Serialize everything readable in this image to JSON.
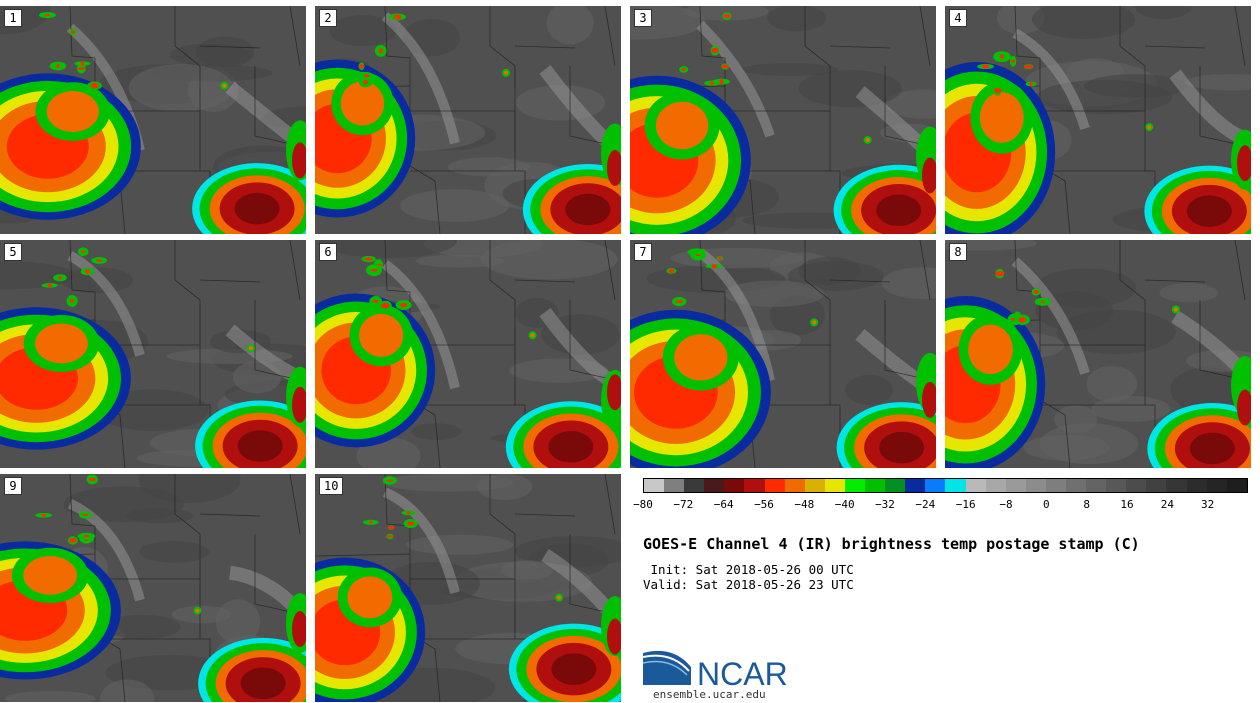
{
  "panels": [
    {
      "label": "1",
      "seed": 1
    },
    {
      "label": "2",
      "seed": 2
    },
    {
      "label": "3",
      "seed": 3
    },
    {
      "label": "4",
      "seed": 4
    },
    {
      "label": "5",
      "seed": 5
    },
    {
      "label": "6",
      "seed": 6
    },
    {
      "label": "7",
      "seed": 7
    },
    {
      "label": "8",
      "seed": 8
    },
    {
      "label": "9",
      "seed": 9
    },
    {
      "label": "10",
      "seed": 10
    }
  ],
  "colorbar": {
    "min": -80,
    "max": 40,
    "step": 4,
    "colors": [
      "#c8c8c8",
      "#7f7f7f",
      "#3a3a3a",
      "#4a1a1a",
      "#7a0a0a",
      "#b10e0e",
      "#ff2a00",
      "#f26b00",
      "#dcb000",
      "#e6e600",
      "#00ee00",
      "#00c000",
      "#009020",
      "#0a2aa0",
      "#0a7aff",
      "#00e6e6",
      "#b9b9b9",
      "#a8a8a8",
      "#9a9a9a",
      "#8c8c8c",
      "#7e7e7e",
      "#707070",
      "#646464",
      "#585858",
      "#4c4c4c",
      "#414141",
      "#363636",
      "#2c2c2c",
      "#252525",
      "#1e1e1e"
    ],
    "tick_labels": [
      "−80",
      "−72",
      "−64",
      "−56",
      "−48",
      "−40",
      "−32",
      "−24",
      "−16",
      "−8",
      "0",
      "8",
      "16",
      "24",
      "32"
    ]
  },
  "title": "GOES-E Channel 4 (IR) brightness temp postage stamp (C)",
  "init_line": " Init: Sat 2018-05-26 00 UTC",
  "valid_line": "Valid: Sat 2018-05-26 23 UTC",
  "logo": {
    "text": "NCAR",
    "url": "ensemble.ucar.edu",
    "color": "#1a5a9a"
  }
}
